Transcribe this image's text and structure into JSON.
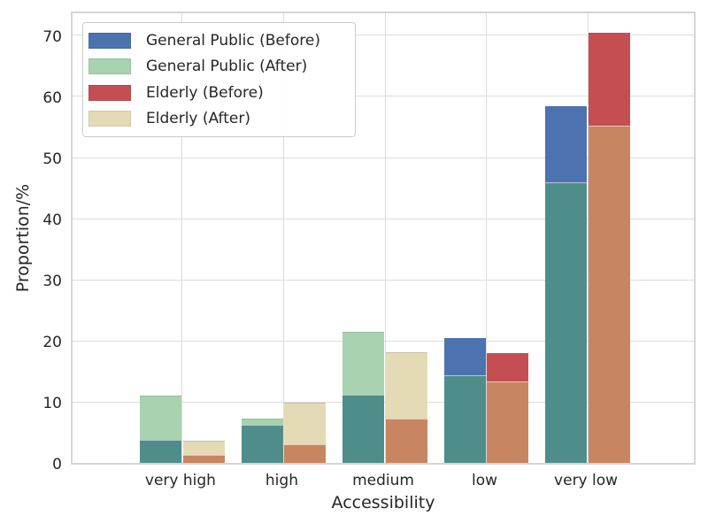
{
  "chart_data": {
    "type": "bar",
    "variant": "grouped-overlaid-before-after",
    "title": "",
    "xlabel": "Accessibility",
    "ylabel": "Proportion/%",
    "categories": [
      "very high",
      "high",
      "medium",
      "low",
      "very low"
    ],
    "series": [
      {
        "name": "General Public (Before)",
        "group": "general_public",
        "phase": "before",
        "color": "#4c72b0",
        "values": [
          3.7,
          6.3,
          11.2,
          20.4,
          58.4
        ]
      },
      {
        "name": "General Public (After)",
        "group": "general_public",
        "phase": "after",
        "color": "#a8d2b0",
        "values": [
          11.0,
          7.3,
          21.5,
          14.3,
          45.9
        ]
      },
      {
        "name": "Elderly (Before)",
        "group": "elderly",
        "phase": "before",
        "color": "#c44e52",
        "values": [
          1.3,
          3.0,
          7.2,
          18.0,
          70.5
        ]
      },
      {
        "name": "Elderly (After)",
        "group": "elderly",
        "phase": "after",
        "color": "#e4dbb6",
        "values": [
          3.6,
          9.8,
          18.1,
          13.3,
          55.2
        ]
      }
    ],
    "overlap_colors": {
      "general_public": "#4f8d8b",
      "elderly": "#c88562"
    },
    "y_ticks": [
      0,
      10,
      20,
      30,
      40,
      50,
      60,
      70
    ],
    "ylim": [
      0,
      74.2
    ],
    "grid": true,
    "legend_position": "upper-left",
    "colors": {
      "text": "#262626",
      "grid": "#dcdcdc",
      "spine": "#d5d5d5",
      "background": "#ffffff"
    }
  }
}
